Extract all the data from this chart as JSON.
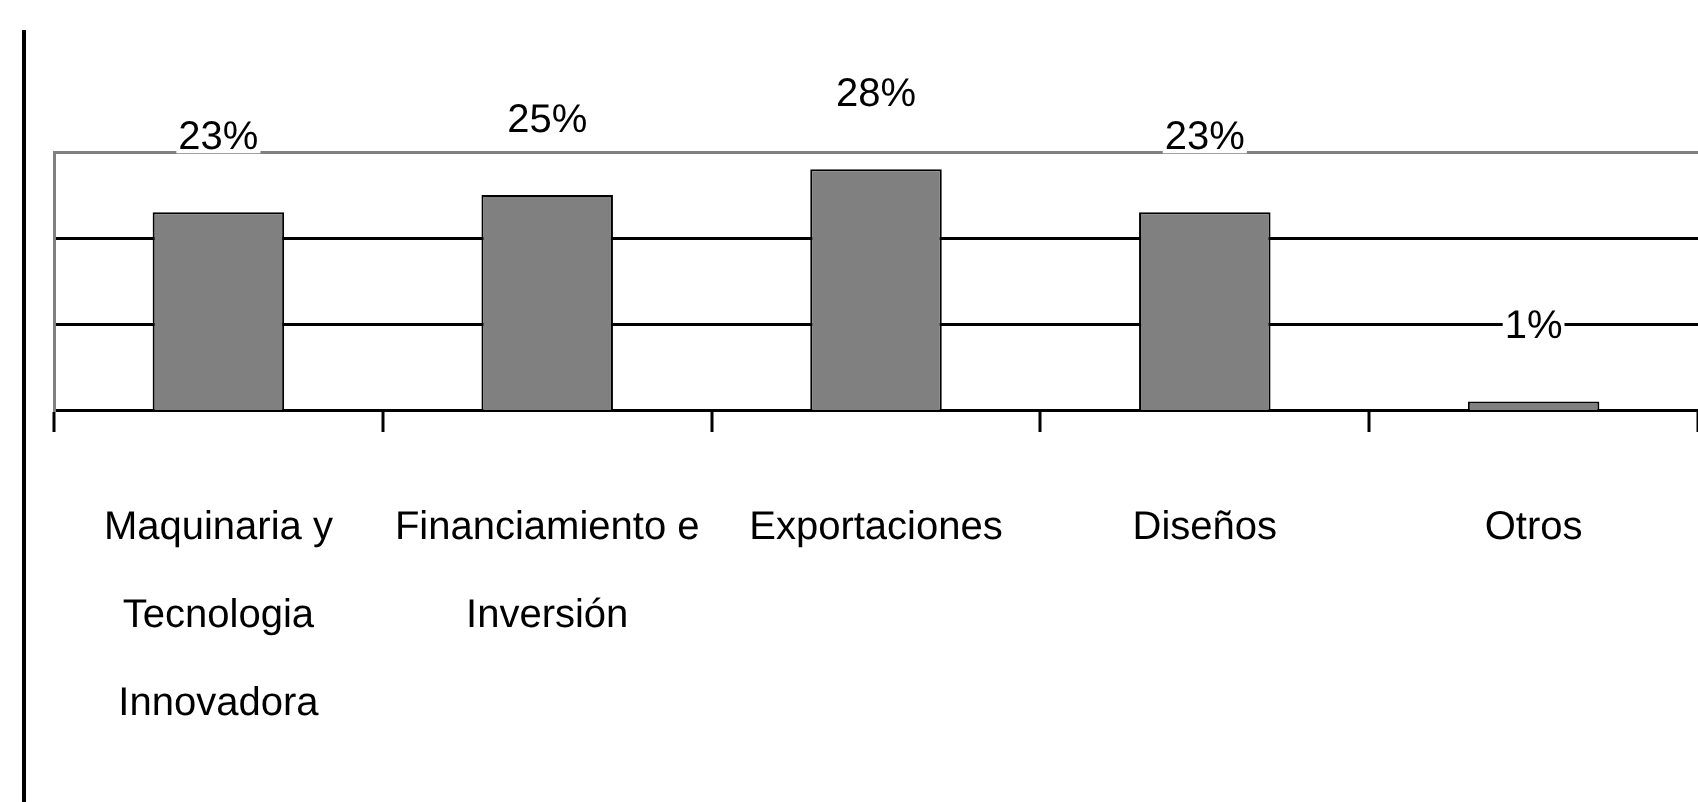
{
  "chart_data": {
    "type": "bar",
    "categories": [
      "Maquinaria y Tecnologia Innovadora",
      "Financiamiento e Inversión",
      "Exportaciones",
      "Diseños",
      "Otros"
    ],
    "values": [
      23,
      25,
      28,
      23,
      1
    ],
    "value_labels": [
      "23%",
      "25%",
      "28%",
      "23%",
      "1%"
    ],
    "color": "#808080",
    "ylim": [
      0,
      30
    ],
    "yticks": [
      {
        "value": 10,
        "label": null
      },
      {
        "value": 20,
        "label": null
      },
      {
        "value": 30,
        "label": null
      }
    ],
    "grid": "y",
    "tick_labels": "x"
  }
}
